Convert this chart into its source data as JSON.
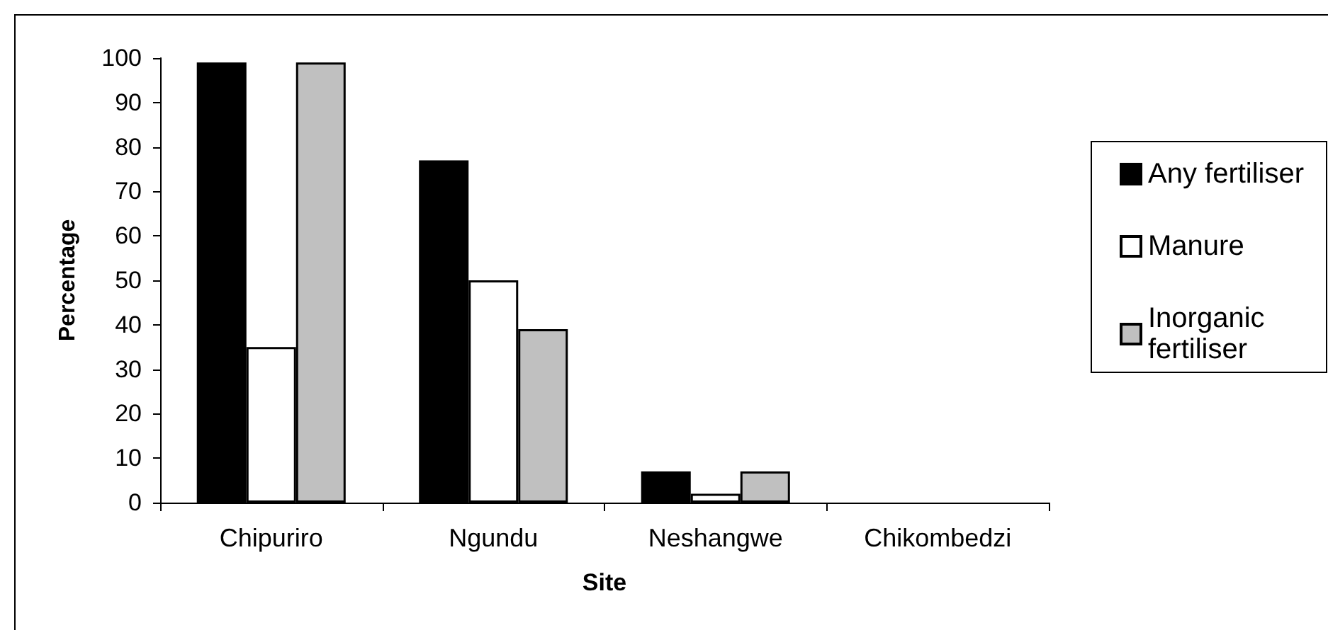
{
  "chart_data": {
    "type": "bar",
    "xlabel": "Site",
    "ylabel": "Percentage",
    "categories": [
      "Chipuriro",
      "Ngundu",
      "Neshangwe",
      "Chikombedzi"
    ],
    "series": [
      {
        "name": "Any fertiliser",
        "color": "#000000",
        "values": [
          99,
          77,
          7,
          0
        ]
      },
      {
        "name": "Manure",
        "color": "#ffffff",
        "values": [
          35,
          50,
          2,
          0
        ]
      },
      {
        "name": "Inorganic fertiliser",
        "color": "#c0c0c0",
        "values": [
          99,
          39,
          7,
          0
        ]
      }
    ],
    "ylim": [
      0,
      100
    ],
    "yticks": [
      0,
      10,
      20,
      30,
      40,
      50,
      60,
      70,
      80,
      90,
      100
    ],
    "grid": false,
    "legend": "right"
  }
}
